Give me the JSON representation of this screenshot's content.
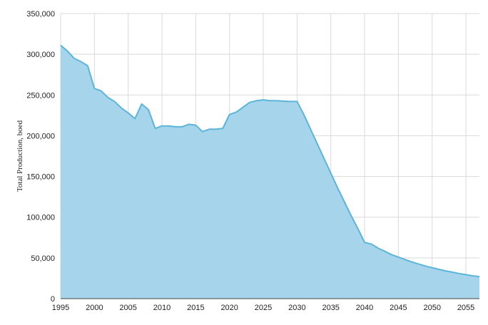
{
  "chart_data": {
    "type": "area",
    "title": "",
    "xlabel": "",
    "ylabel": "Total Production, boed",
    "xlim": [
      1995,
      2057
    ],
    "ylim": [
      0,
      350000
    ],
    "x_ticks": [
      1995,
      2000,
      2005,
      2010,
      2015,
      2020,
      2025,
      2030,
      2035,
      2040,
      2045,
      2050,
      2055
    ],
    "y_ticks": [
      0,
      50000,
      100000,
      150000,
      200000,
      250000,
      300000,
      350000
    ],
    "y_tick_labels": [
      "0",
      "50,000",
      "100,000",
      "150,000",
      "200,000",
      "250,000",
      "300,000",
      "350,000"
    ],
    "grid": true,
    "legend": "none",
    "colors": {
      "fill": "#a6d4ea",
      "line": "#5bb5d9",
      "grid": "#d9d9d9",
      "axis": "#444444"
    },
    "series": [
      {
        "x": [
          1995,
          1996,
          1997,
          1998,
          1999,
          2000,
          2001,
          2002,
          2003,
          2004,
          2005,
          2006,
          2007,
          2008,
          2009,
          2010,
          2011,
          2012,
          2013,
          2014,
          2015,
          2016,
          2017,
          2018,
          2019,
          2020,
          2021,
          2022,
          2023,
          2024,
          2025,
          2026,
          2027,
          2028,
          2029,
          2030,
          2031,
          2032,
          2033,
          2034,
          2035,
          2036,
          2037,
          2038,
          2039,
          2040,
          2041,
          2042,
          2043,
          2044,
          2045,
          2046,
          2047,
          2048,
          2049,
          2050,
          2051,
          2052,
          2053,
          2054,
          2055,
          2056,
          2057
        ],
        "values": [
          311000,
          304000,
          295000,
          291000,
          286000,
          258000,
          255000,
          247000,
          242000,
          234000,
          228000,
          221000,
          239000,
          232000,
          209000,
          212000,
          212000,
          211000,
          211000,
          214000,
          213000,
          205000,
          208000,
          208000,
          209000,
          226000,
          229000,
          235000,
          241000,
          243000,
          244000,
          243000,
          243000,
          242500,
          242000,
          242000,
          226000,
          208000,
          190000,
          172000,
          154000,
          136000,
          119000,
          102000,
          86000,
          69000,
          67000,
          62000,
          58000,
          54000,
          51000,
          48000,
          45000,
          42500,
          40000,
          38000,
          36000,
          34000,
          32500,
          30800,
          29400,
          28000,
          27000
        ]
      }
    ]
  }
}
